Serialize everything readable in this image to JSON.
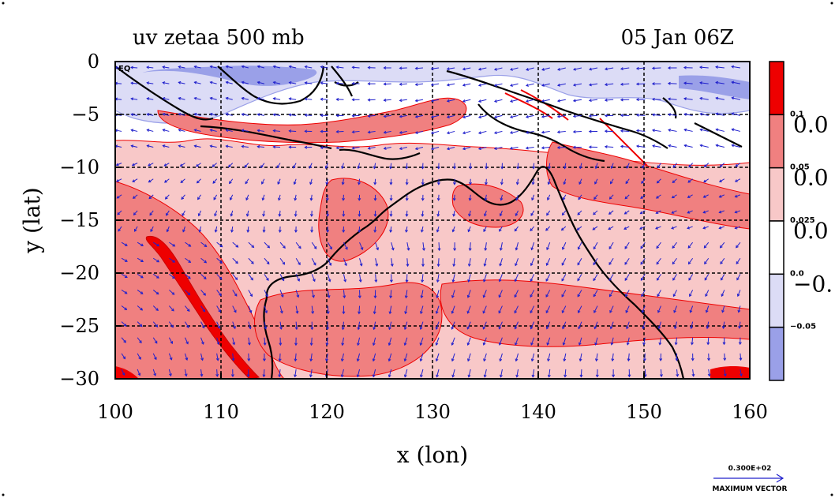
{
  "chart_data": {
    "type": "heatmap",
    "title_left": "uv zetaa 500 mb",
    "title_right": "05 Jan 06Z",
    "xlabel": "x (lon)",
    "ylabel": "y (lat)",
    "xlim": [
      100,
      160
    ],
    "ylim": [
      -30,
      0
    ],
    "x_ticks": [
      100,
      110,
      120,
      130,
      140,
      150,
      160
    ],
    "y_ticks": [
      0,
      -5,
      -10,
      -15,
      -20,
      -25,
      -30
    ],
    "x_tick_labels": [
      "100",
      "110",
      "120",
      "130",
      "140",
      "150",
      "160"
    ],
    "y_tick_labels": [
      "0",
      "−5",
      "−10",
      "−15",
      "−20",
      "−25",
      "−30"
    ],
    "corner_label": "EQ",
    "grid": true,
    "colorbar": {
      "levels": [
        {
          "color": "#ee0000",
          "label": "0.1",
          "big": "0.0"
        },
        {
          "color": "#f08080",
          "label": "0.05",
          "big": "0.0"
        },
        {
          "color": "#f8c8c8",
          "label": "0.025",
          "big": "0.0"
        },
        {
          "color": "#ffffff",
          "label": "0.0",
          "big": "−0."
        },
        {
          "color": "#dcdcf6",
          "label": "−0.05",
          "big": ""
        },
        {
          "color": "#9aa0e8",
          "label": "",
          "big": ""
        }
      ]
    },
    "vector_reference": {
      "value": "0.300E+02",
      "caption": "MAXIMUM VECTOR"
    },
    "colors": {
      "strong_positive": "#ee0000",
      "positive": "#f08080",
      "weak_positive": "#f8c8c8",
      "weak_negative": "#dcdcf6",
      "negative": "#9aa0e8",
      "vectors": "#2020cc",
      "coast": "#000000"
    }
  }
}
